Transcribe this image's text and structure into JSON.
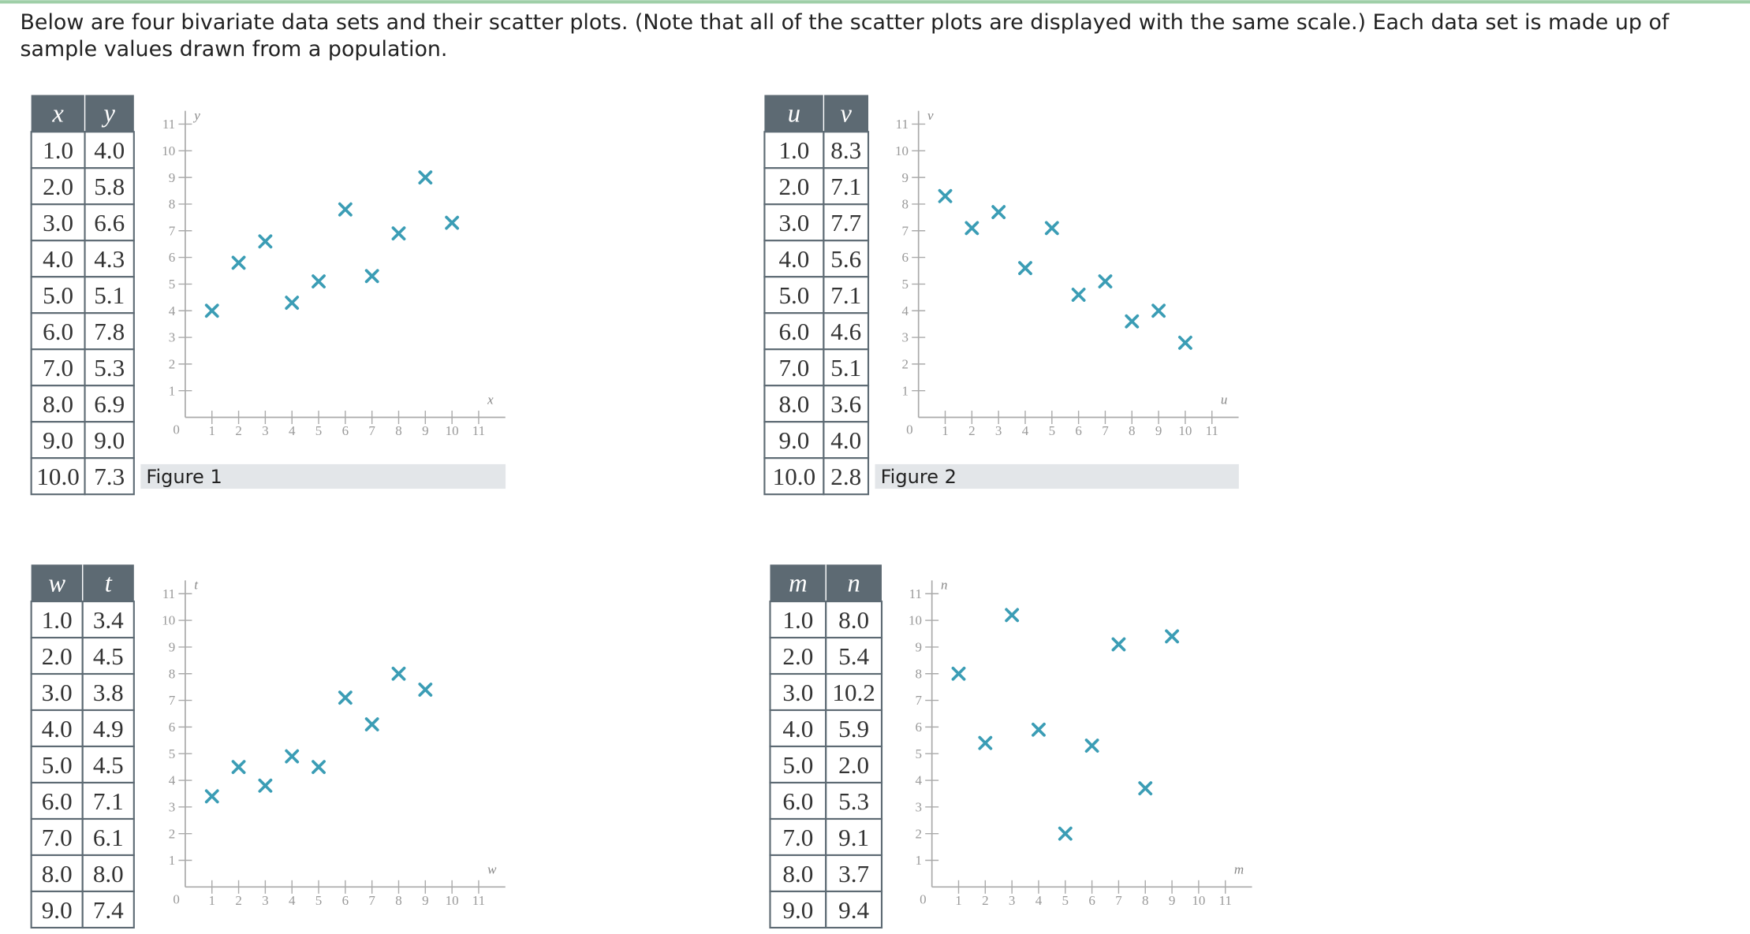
{
  "intro": [
    "Below are four bivariate data sets and their scatter plots. (Note that all of the scatter plots are displayed with the same scale.) Each data set is made up of",
    "sample values drawn from a population."
  ],
  "axis": {
    "xlim": [
      0,
      12
    ],
    "ylim": [
      0,
      11.5
    ],
    "ticks": [
      0,
      1,
      2,
      3,
      4,
      5,
      6,
      7,
      8,
      9,
      10,
      11
    ]
  },
  "panels": [
    {
      "headers": [
        "x",
        "y"
      ],
      "figure": "Figure 1",
      "rows": [
        [
          "1.0",
          "4.0"
        ],
        [
          "2.0",
          "5.8"
        ],
        [
          "3.0",
          "6.6"
        ],
        [
          "4.0",
          "4.3"
        ],
        [
          "5.0",
          "5.1"
        ],
        [
          "6.0",
          "7.8"
        ],
        [
          "7.0",
          "5.3"
        ],
        [
          "8.0",
          "6.9"
        ],
        [
          "9.0",
          "9.0"
        ],
        [
          "10.0",
          "7.3"
        ]
      ]
    },
    {
      "headers": [
        "u",
        "v"
      ],
      "figure": "Figure 2",
      "rows": [
        [
          "1.0",
          "8.3"
        ],
        [
          "2.0",
          "7.1"
        ],
        [
          "3.0",
          "7.7"
        ],
        [
          "4.0",
          "5.6"
        ],
        [
          "5.0",
          "7.1"
        ],
        [
          "6.0",
          "4.6"
        ],
        [
          "7.0",
          "5.1"
        ],
        [
          "8.0",
          "3.6"
        ],
        [
          "9.0",
          "4.0"
        ],
        [
          "10.0",
          "2.8"
        ]
      ]
    },
    {
      "headers": [
        "w",
        "t"
      ],
      "rows": [
        [
          "1.0",
          "3.4"
        ],
        [
          "2.0",
          "4.5"
        ],
        [
          "3.0",
          "3.8"
        ],
        [
          "4.0",
          "4.9"
        ],
        [
          "5.0",
          "4.5"
        ],
        [
          "6.0",
          "7.1"
        ],
        [
          "7.0",
          "6.1"
        ],
        [
          "8.0",
          "8.0"
        ],
        [
          "9.0",
          "7.4"
        ]
      ]
    },
    {
      "headers": [
        "m",
        "n"
      ],
      "rows": [
        [
          "1.0",
          "8.0"
        ],
        [
          "2.0",
          "5.4"
        ],
        [
          "3.0",
          "10.2"
        ],
        [
          "4.0",
          "5.9"
        ],
        [
          "5.0",
          "2.0"
        ],
        [
          "6.0",
          "5.3"
        ],
        [
          "7.0",
          "9.1"
        ],
        [
          "8.0",
          "3.7"
        ],
        [
          "9.0",
          "9.4"
        ]
      ]
    }
  ]
}
